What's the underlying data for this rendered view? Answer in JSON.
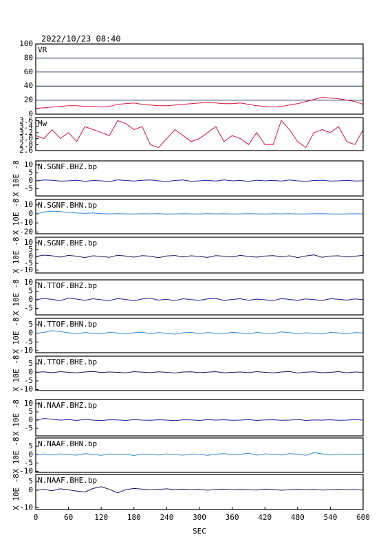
{
  "header": "2022/10/23 08:40",
  "chart_data": [
    {
      "type": "line",
      "title": "VR",
      "color": "#d8143c",
      "grid": true,
      "xlim": [
        0,
        600
      ],
      "ylim": [
        0,
        100
      ],
      "yticks": [
        0,
        20,
        40,
        60,
        80,
        100
      ],
      "x": [
        0,
        15,
        30,
        45,
        60,
        75,
        90,
        105,
        120,
        135,
        150,
        165,
        180,
        195,
        210,
        225,
        240,
        255,
        270,
        285,
        300,
        315,
        330,
        345,
        360,
        375,
        390,
        405,
        420,
        435,
        450,
        465,
        480,
        495,
        510,
        525,
        540,
        555,
        570,
        585,
        600
      ],
      "values": [
        8,
        9,
        10,
        11,
        12,
        12,
        11,
        11,
        10,
        11,
        14,
        15,
        16,
        14,
        13,
        12,
        12,
        13,
        14,
        15,
        16,
        17,
        16,
        15,
        15,
        16,
        14,
        12,
        11,
        10,
        11,
        13,
        15,
        18,
        21,
        24,
        23,
        22,
        20,
        18,
        14
      ]
    },
    {
      "type": "line",
      "title": "Mw",
      "color": "#e0104a",
      "xlim": [
        0,
        600
      ],
      "ylim": [
        2.6,
        3.7
      ],
      "yticks": [
        3.6,
        3.4,
        3.2,
        {
          "value": 3,
          "label": "3.0"
        },
        2.8,
        2.6
      ],
      "x": [
        0,
        15,
        30,
        45,
        60,
        75,
        90,
        105,
        120,
        135,
        150,
        165,
        180,
        195,
        210,
        225,
        240,
        255,
        270,
        285,
        300,
        315,
        330,
        345,
        360,
        375,
        390,
        405,
        420,
        435,
        450,
        465,
        480,
        495,
        510,
        525,
        540,
        555,
        570,
        585,
        600
      ],
      "values": [
        3.1,
        3.0,
        3.3,
        3.0,
        3.2,
        2.9,
        3.4,
        3.3,
        3.2,
        3.1,
        3.6,
        3.5,
        3.3,
        3.4,
        2.8,
        2.7,
        3.0,
        3.3,
        3.1,
        2.9,
        3.0,
        3.2,
        3.4,
        2.9,
        3.1,
        3.0,
        2.8,
        3.2,
        2.8,
        2.8,
        3.6,
        3.3,
        2.9,
        2.7,
        3.2,
        3.3,
        3.2,
        3.4,
        2.9,
        2.8,
        3.3
      ]
    },
    {
      "type": "line",
      "title": "N.SGNF.BHZ.bp",
      "ylabel": "X 10E -8",
      "color": "#1a1aa0",
      "xlim": [
        0,
        600
      ],
      "ylim": [
        -9.5,
        12.5
      ],
      "yticks": [
        10,
        5,
        0,
        -5
      ],
      "x": [
        0,
        15,
        30,
        45,
        60,
        75,
        90,
        105,
        120,
        135,
        150,
        165,
        180,
        195,
        210,
        225,
        240,
        255,
        270,
        285,
        300,
        315,
        330,
        345,
        360,
        375,
        390,
        405,
        420,
        435,
        450,
        465,
        480,
        495,
        510,
        525,
        540,
        555,
        570,
        585,
        600
      ],
      "values": [
        0,
        0.5,
        0.3,
        -0.2,
        0,
        0.4,
        -0.3,
        0.2,
        0,
        -0.5,
        0.6,
        0.2,
        -0.2,
        0.3,
        0.5,
        0,
        -0.4,
        0.2,
        0.5,
        -0.3,
        0,
        0.3,
        -0.2,
        0.6,
        0,
        0.2,
        -0.3,
        0.4,
        0,
        0.3,
        -0.2,
        0.5,
        0,
        -0.3,
        0.2,
        0.4,
        -0.2,
        0,
        0.3,
        -0.1,
        0
      ]
    },
    {
      "type": "line",
      "title": "N.SGNF.BHN.bp",
      "ylabel": "X 10E -8",
      "color": "#2a86d6",
      "xlim": [
        0,
        600
      ],
      "ylim": [
        -22,
        16
      ],
      "yticks": [
        10,
        0,
        -10,
        -20
      ],
      "x": [
        0,
        15,
        30,
        45,
        60,
        75,
        90,
        105,
        120,
        135,
        150,
        165,
        180,
        195,
        210,
        225,
        240,
        255,
        270,
        285,
        300,
        315,
        330,
        345,
        360,
        375,
        390,
        405,
        420,
        435,
        450,
        465,
        480,
        495,
        510,
        525,
        540,
        555,
        570,
        585,
        600
      ],
      "values": [
        0,
        2,
        3,
        2.5,
        1.5,
        1,
        0.5,
        1,
        0.3,
        0,
        0.2,
        0,
        -0.2,
        0.1,
        0,
        0.2,
        -0.1,
        0,
        0.1,
        0,
        -0.1,
        0.2,
        0,
        0.1,
        -0.1,
        0,
        0.2,
        0,
        -0.1,
        0.1,
        0,
        0.2,
        -0.1,
        0,
        0.1,
        0.2,
        0,
        -0.1,
        0,
        0.1,
        0
      ]
    },
    {
      "type": "line",
      "title": "N.SGNF.BHE.bp",
      "ylabel": "X 10E -8",
      "color": "#10105e",
      "xlim": [
        0,
        600
      ],
      "ylim": [
        -12,
        14
      ],
      "yticks": [
        10,
        5,
        0,
        -5,
        -10
      ],
      "x": [
        0,
        15,
        30,
        45,
        60,
        75,
        90,
        105,
        120,
        135,
        150,
        165,
        180,
        195,
        210,
        225,
        240,
        255,
        270,
        285,
        300,
        315,
        330,
        345,
        360,
        375,
        390,
        405,
        420,
        435,
        450,
        465,
        480,
        495,
        510,
        525,
        540,
        555,
        570,
        585,
        600
      ],
      "values": [
        0,
        1,
        0.5,
        -0.5,
        0.8,
        0.2,
        -0.8,
        0.5,
        0,
        -0.6,
        0.9,
        0.3,
        -0.5,
        0.6,
        0.2,
        -0.9,
        0.4,
        0.7,
        -0.3,
        0.5,
        0,
        -0.7,
        0.6,
        0.2,
        -0.4,
        0.8,
        0,
        -0.5,
        0.3,
        0.6,
        -0.2,
        0.5,
        -0.8,
        0.4,
        1.2,
        -0.6,
        0.3,
        0.5,
        -0.4,
        0.2,
        0.8
      ]
    },
    {
      "type": "line",
      "title": "N.TTOF.BHZ.bp",
      "ylabel": "X 10E -8",
      "color": "#1a1aa0",
      "xlim": [
        0,
        600
      ],
      "ylim": [
        -8.8,
        11.6
      ],
      "yticks": [
        10,
        5,
        0,
        -5
      ],
      "x": [
        0,
        15,
        30,
        45,
        60,
        75,
        90,
        105,
        120,
        135,
        150,
        165,
        180,
        195,
        210,
        225,
        240,
        255,
        270,
        285,
        300,
        315,
        330,
        345,
        360,
        375,
        390,
        405,
        420,
        435,
        450,
        465,
        480,
        495,
        510,
        525,
        540,
        555,
        570,
        585,
        600
      ],
      "values": [
        0,
        0.8,
        0.2,
        -0.5,
        1,
        0.4,
        -0.3,
        0.6,
        0,
        -0.4,
        0.7,
        0.2,
        -0.6,
        0.5,
        0.9,
        -0.2,
        0.3,
        -0.5,
        0.6,
        0.1,
        -0.3,
        0.5,
        0.8,
        -0.4,
        0.2,
        0.6,
        -0.3,
        0.4,
        0,
        -0.5,
        0.7,
        0.2,
        -0.3,
        0.5,
        0.1,
        -0.4,
        0.6,
        0.3,
        -0.2,
        0.5,
        0
      ]
    },
    {
      "type": "line",
      "title": "N.TTOF.BHN.bp",
      "ylabel": "X 10E -8",
      "color": "#2a86d6",
      "xlim": [
        0,
        600
      ],
      "ylim": [
        -11.2,
        8.6
      ],
      "yticks": [
        5,
        0,
        -5,
        -10
      ],
      "x": [
        0,
        15,
        30,
        45,
        60,
        75,
        90,
        105,
        120,
        135,
        150,
        165,
        180,
        195,
        210,
        225,
        240,
        255,
        270,
        285,
        300,
        315,
        330,
        345,
        360,
        375,
        390,
        405,
        420,
        435,
        450,
        465,
        480,
        495,
        510,
        525,
        540,
        555,
        570,
        585,
        600
      ],
      "values": [
        0,
        0.5,
        1.5,
        1,
        0.3,
        -0.2,
        0.4,
        0,
        -0.3,
        0.5,
        0.2,
        -0.4,
        0.3,
        0.6,
        -0.2,
        0.4,
        0,
        -0.5,
        0.3,
        0.5,
        -0.2,
        0.4,
        0.1,
        -0.3,
        0.6,
        0.2,
        -0.4,
        0.5,
        0,
        -0.3,
        0.8,
        0.4,
        -0.2,
        0.3,
        0,
        -0.4,
        0.5,
        0.2,
        -0.3,
        0.4,
        0.2
      ]
    },
    {
      "type": "line",
      "title": "N.TTOF.BHE.bp",
      "ylabel": "X 10E -8",
      "color": "#10105e",
      "xlim": [
        0,
        600
      ],
      "ylim": [
        -10.6,
        9.4
      ],
      "yticks": [
        5,
        0,
        -5,
        -10
      ],
      "x": [
        0,
        15,
        30,
        45,
        60,
        75,
        90,
        105,
        120,
        135,
        150,
        165,
        180,
        195,
        210,
        225,
        240,
        255,
        270,
        285,
        300,
        315,
        330,
        345,
        360,
        375,
        390,
        405,
        420,
        435,
        450,
        465,
        480,
        495,
        510,
        525,
        540,
        555,
        570,
        585,
        600
      ],
      "values": [
        0,
        0.3,
        -0.2,
        0.4,
        0,
        -0.3,
        0.2,
        0.5,
        -0.1,
        0.2,
        0,
        -0.3,
        0.4,
        0.1,
        -0.2,
        0.3,
        0,
        -0.4,
        0.2,
        0.3,
        -0.2,
        0.1,
        0.4,
        -0.3,
        0,
        0.2,
        -0.2,
        0.4,
        0,
        -0.3,
        0.2,
        0.5,
        -0.4,
        0.1,
        0.3,
        -0.2,
        0,
        0.4,
        -0.3,
        0.2,
        0
      ]
    },
    {
      "type": "line",
      "title": "N.NAAF.BHZ.bp",
      "ylabel": "X 10E -8",
      "color": "#1a1aa0",
      "xlim": [
        0,
        600
      ],
      "ylim": [
        -9.6,
        12.5
      ],
      "yticks": [
        10,
        5,
        0,
        -5
      ],
      "x": [
        0,
        15,
        30,
        45,
        60,
        75,
        90,
        105,
        120,
        135,
        150,
        165,
        180,
        195,
        210,
        225,
        240,
        255,
        270,
        285,
        300,
        315,
        330,
        345,
        360,
        375,
        390,
        405,
        420,
        435,
        450,
        465,
        480,
        495,
        510,
        525,
        540,
        555,
        570,
        585,
        600
      ],
      "values": [
        0,
        1,
        0.5,
        0,
        0.3,
        -0.2,
        0.4,
        0,
        -0.3,
        0.2,
        0.1,
        -0.2,
        0.3,
        0,
        -0.1,
        0.2,
        0,
        -0.3,
        0.2,
        0.1,
        -0.2,
        0.3,
        0,
        0.2,
        -0.1,
        0,
        0.3,
        -0.2,
        0.1,
        0.2,
        -0.1,
        0,
        0.4,
        -0.2,
        0.1,
        0,
        0.2,
        -0.1,
        0,
        0.3,
        0
      ]
    },
    {
      "type": "line",
      "title": "N.NAAF.BHN.bp",
      "ylabel": "X 10E -8",
      "color": "#2a86d6",
      "xlim": [
        0,
        600
      ],
      "ylim": [
        -10.6,
        10
      ],
      "yticks": [
        5,
        0,
        -5,
        -10
      ],
      "x": [
        0,
        15,
        30,
        45,
        60,
        75,
        90,
        105,
        120,
        135,
        150,
        165,
        180,
        195,
        210,
        225,
        240,
        255,
        270,
        285,
        300,
        315,
        330,
        345,
        360,
        375,
        390,
        405,
        420,
        435,
        450,
        465,
        480,
        495,
        510,
        525,
        540,
        555,
        570,
        585,
        600
      ],
      "values": [
        0,
        0.4,
        -0.2,
        0.5,
        0,
        -0.3,
        0.6,
        0.2,
        -0.4,
        0.5,
        0,
        0.3,
        -0.5,
        0.4,
        0.1,
        -0.2,
        0.5,
        0,
        -0.3,
        0.4,
        0.2,
        -0.4,
        0.3,
        0.6,
        -0.1,
        0.2,
        0.8,
        -0.3,
        0.5,
        0.2,
        -0.2,
        0.6,
        0.3,
        -0.4,
        1.2,
        0.5,
        -0.2,
        0.4,
        0,
        0.3,
        0.2
      ]
    },
    {
      "type": "line",
      "title": "N.NAAF.BHE.bp",
      "ylabel": "X 10E -8",
      "xlabel": "SEC",
      "color": "#10105e",
      "xlim": [
        0,
        600
      ],
      "ylim": [
        -11,
        9
      ],
      "yticks": [
        5,
        0,
        -10
      ],
      "xticks": [
        0,
        60,
        120,
        180,
        240,
        300,
        360,
        420,
        480,
        540,
        600
      ],
      "x": [
        0,
        15,
        30,
        45,
        60,
        75,
        90,
        105,
        120,
        135,
        150,
        165,
        180,
        195,
        210,
        225,
        240,
        255,
        270,
        285,
        300,
        315,
        330,
        345,
        360,
        375,
        390,
        405,
        420,
        435,
        450,
        465,
        480,
        495,
        510,
        525,
        540,
        555,
        570,
        585,
        600
      ],
      "values": [
        0,
        0.5,
        -0.3,
        0.8,
        0.2,
        -0.5,
        -1,
        1,
        2,
        0.5,
        -1.5,
        0.3,
        1,
        0.6,
        0.2,
        0.5,
        0.8,
        0.3,
        0.6,
        0.2,
        0.5,
        0,
        0.4,
        0.6,
        0.2,
        0.5,
        0.3,
        0.1,
        0.6,
        0.4,
        0,
        0.3,
        0.5,
        0.2,
        0.4,
        0.1,
        0.3,
        0.5,
        0.2,
        0.3,
        0.1
      ]
    }
  ]
}
